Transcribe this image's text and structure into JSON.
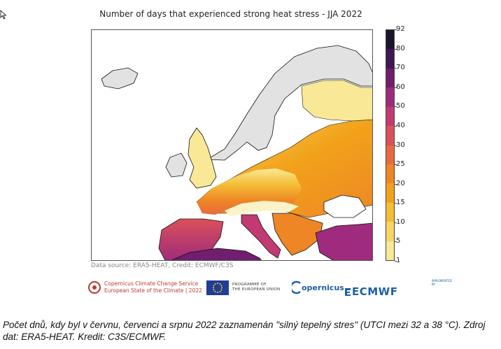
{
  "map": {
    "title": "Number of days that experienced strong heat stress - JJA 2022",
    "source": "Data source: ERA5-HEAT, Credit: ECMWF/C3S",
    "legend": {
      "ticks": [
        "92",
        "80",
        "70",
        "60",
        "50",
        "40",
        "30",
        "25",
        "20",
        "15",
        "10",
        "5",
        "1"
      ],
      "colors": [
        "#1c1528",
        "#41174f",
        "#711e6e",
        "#9e2b7d",
        "#c23a72",
        "#db5059",
        "#e86a3c",
        "#ee8626",
        "#f2a21a",
        "#f5bd35",
        "#f7d562",
        "#f9e996"
      ]
    },
    "palette": {
      "land_no_data": "#e2e2e2",
      "sea": "#ffffff",
      "coast": "#111111"
    }
  },
  "logos": {
    "c3s_line1": "Copernicus Climate Change Service",
    "c3s_line2": "European State of the Climate | 2022",
    "eu_line1": "PROGRAMME OF",
    "eu_line2": "THE EUROPEAN UNION",
    "copernicus": "opernicus",
    "ecmwf_small": "IMPLEMENTED BY",
    "ecmwf": "ECMWF"
  },
  "caption": "Počet dnů, kdy byl v červnu, červenci a srpnu 2022 zaznamenán \"silný tepelný stres\" (UTCI mezi 32 a 38 °C). Zdroj dat: ERA5-HEAT. Kredit: C3S/ECMWF."
}
